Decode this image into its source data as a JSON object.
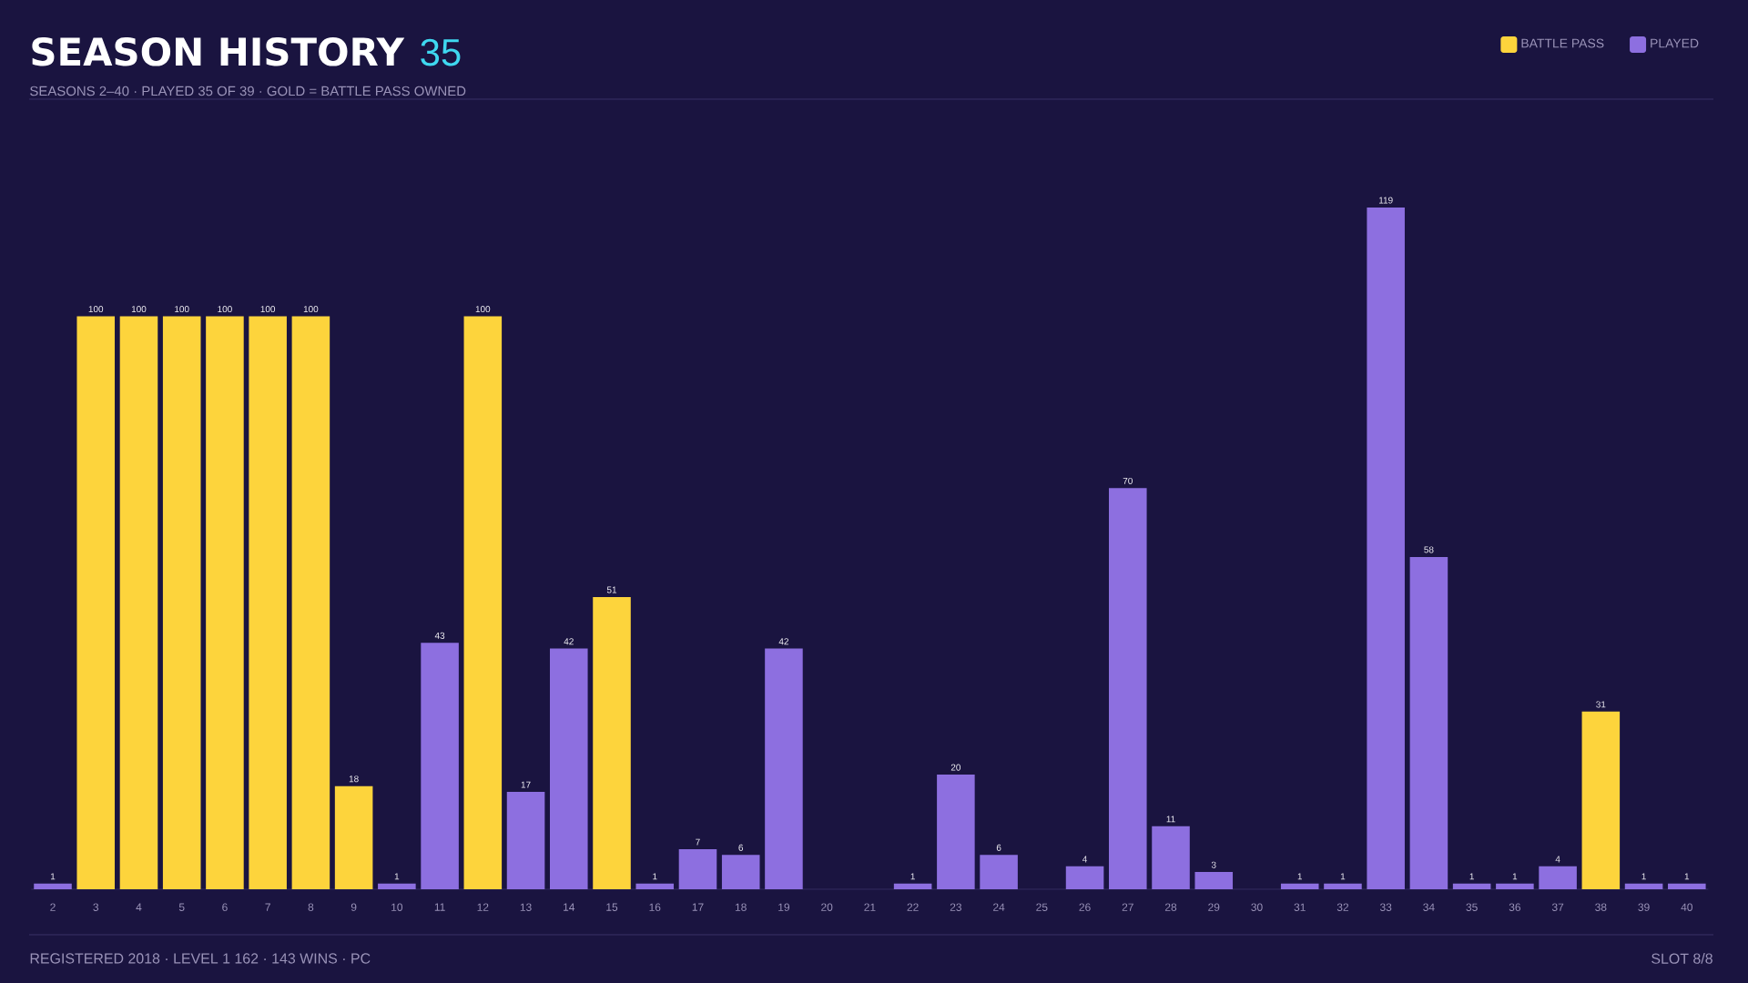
{
  "chart_data": {
    "type": "bar",
    "title": "SEASON HISTORY",
    "subtitle": "SEASONS 2–40 · PLAYED 35 OF 39 · GOLD = BATTLE PASS OWNED",
    "annotations": [
      "35",
      "REGISTERED 2018 · LEVEL 1 162 · 143 WINS · PC",
      "SLOT 8/8"
    ],
    "categories": [
      "2",
      "3",
      "4",
      "5",
      "6",
      "7",
      "8",
      "9",
      "10",
      "11",
      "12",
      "13",
      "14",
      "15",
      "16",
      "17",
      "18",
      "19",
      "20",
      "21",
      "22",
      "23",
      "24",
      "25",
      "26",
      "27",
      "28",
      "29",
      "30",
      "31",
      "32",
      "33",
      "34",
      "35",
      "36",
      "37",
      "38",
      "39",
      "40"
    ],
    "series": [
      {
        "name": "BATTLE PASS",
        "color": "#fdd43c",
        "values": [
          null,
          100,
          100,
          100,
          100,
          100,
          100,
          18,
          null,
          null,
          100,
          null,
          null,
          51,
          null,
          null,
          null,
          null,
          null,
          null,
          null,
          null,
          null,
          null,
          null,
          null,
          null,
          null,
          null,
          null,
          null,
          null,
          null,
          null,
          null,
          null,
          31,
          null,
          null
        ]
      },
      {
        "name": "PLAYED",
        "color": "#8d6fe0",
        "values": [
          1,
          null,
          null,
          null,
          null,
          null,
          null,
          null,
          1,
          43,
          null,
          17,
          42,
          null,
          1,
          7,
          6,
          42,
          null,
          null,
          1,
          20,
          6,
          null,
          4,
          70,
          11,
          3,
          null,
          1,
          1,
          119,
          58,
          1,
          1,
          4,
          null,
          1,
          1
        ]
      }
    ],
    "data_labels": true,
    "legend": "top right",
    "tick_labels": "x",
    "grid": false
  }
}
